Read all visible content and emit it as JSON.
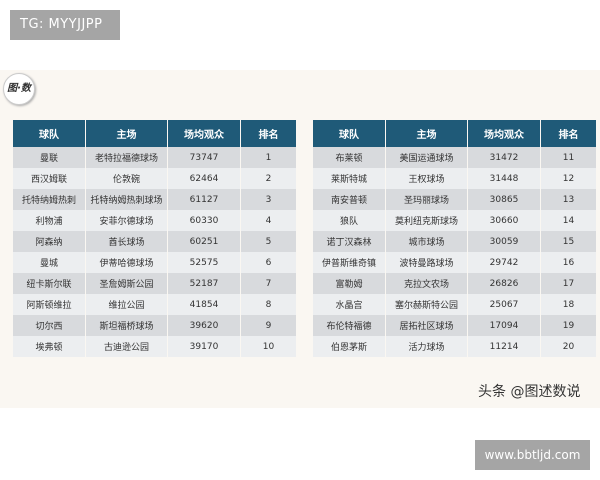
{
  "watermark_top": "TG: MYYJJPP",
  "watermark_bottom": "www.bbtljd.com",
  "logo": "图·数",
  "credit": "头条 @图述数说",
  "headers": [
    "球队",
    "主场",
    "场均观众",
    "排名"
  ],
  "left_rows": [
    [
      "曼联",
      "老特拉福德球场",
      "73747",
      "1"
    ],
    [
      "西汉姆联",
      "伦敦碗",
      "62464",
      "2"
    ],
    [
      "托特纳姆热刺",
      "托特纳姆热刺球场",
      "61127",
      "3"
    ],
    [
      "利物浦",
      "安菲尔德球场",
      "60330",
      "4"
    ],
    [
      "阿森纳",
      "酋长球场",
      "60251",
      "5"
    ],
    [
      "曼城",
      "伊蒂哈德球场",
      "52575",
      "6"
    ],
    [
      "纽卡斯尔联",
      "圣詹姆斯公园",
      "52187",
      "7"
    ],
    [
      "阿斯顿维拉",
      "维拉公园",
      "41854",
      "8"
    ],
    [
      "切尔西",
      "斯坦福桥球场",
      "39620",
      "9"
    ],
    [
      "埃弗顿",
      "古迪逊公园",
      "39170",
      "10"
    ]
  ],
  "right_rows": [
    [
      "布莱顿",
      "美国运通球场",
      "31472",
      "11"
    ],
    [
      "莱斯特城",
      "王权球场",
      "31448",
      "12"
    ],
    [
      "南安普顿",
      "圣玛丽球场",
      "30865",
      "13"
    ],
    [
      "狼队",
      "莫利纽克斯球场",
      "30660",
      "14"
    ],
    [
      "诺丁汉森林",
      "城市球场",
      "30059",
      "15"
    ],
    [
      "伊普斯维奇镇",
      "波特曼路球场",
      "29742",
      "16"
    ],
    [
      "富勒姆",
      "克拉文农场",
      "26826",
      "17"
    ],
    [
      "水晶宫",
      "塞尔赫斯特公园",
      "25067",
      "18"
    ],
    [
      "布伦特福德",
      "居拓社区球场",
      "17094",
      "19"
    ],
    [
      "伯恩茅斯",
      "活力球场",
      "11214",
      "20"
    ]
  ]
}
